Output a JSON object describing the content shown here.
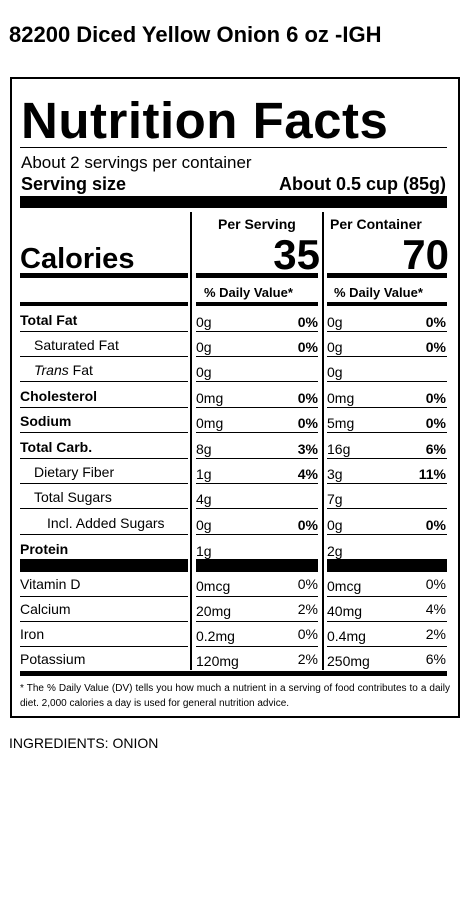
{
  "product_title": "82200 Diced Yellow Onion 6 oz -IGH",
  "label": {
    "heading": "Nutrition Facts",
    "servings_per_container": "About 2 servings per container",
    "serving_size_label": "Serving size",
    "serving_size_value": "About 0.5 cup (85g)",
    "col_per_serving": "Per Serving",
    "col_per_container": "Per Container",
    "calories_label": "Calories",
    "calories_per_serving": "35",
    "calories_per_container": "70",
    "dv_header": "% Daily Value*",
    "rows": [
      {
        "name": "Total Fat",
        "bold": true,
        "ps_amt": "0g",
        "ps_dv": "0%",
        "pc_amt": "0g",
        "pc_dv": "0%"
      },
      {
        "name": "Saturated Fat",
        "bold": false,
        "ps_amt": "0g",
        "ps_dv": "0%",
        "pc_amt": "0g",
        "pc_dv": "0%"
      },
      {
        "name_italic": "Trans",
        "name_rest": " Fat",
        "bold": false,
        "ps_amt": "0g",
        "ps_dv": "",
        "pc_amt": "0g",
        "pc_dv": ""
      },
      {
        "name": "Cholesterol",
        "bold": true,
        "ps_amt": "0mg",
        "ps_dv": "0%",
        "pc_amt": "0mg",
        "pc_dv": "0%"
      },
      {
        "name": "Sodium",
        "bold": true,
        "ps_amt": "0mg",
        "ps_dv": "0%",
        "pc_amt": "5mg",
        "pc_dv": "0%"
      },
      {
        "name": "Total Carb.",
        "bold": true,
        "ps_amt": "8g",
        "ps_dv": "3%",
        "pc_amt": "16g",
        "pc_dv": "6%"
      },
      {
        "name": "Dietary Fiber",
        "bold": false,
        "ps_amt": "1g",
        "ps_dv": "4%",
        "pc_amt": "3g",
        "pc_dv": "11%"
      },
      {
        "name": "Total Sugars",
        "bold": false,
        "ps_amt": "4g",
        "ps_dv": "",
        "pc_amt": "7g",
        "pc_dv": ""
      },
      {
        "name": "Incl. Added Sugars",
        "bold": false,
        "ps_amt": "0g",
        "ps_dv": "0%",
        "pc_amt": "0g",
        "pc_dv": "0%"
      },
      {
        "name": "Protein",
        "bold": true,
        "ps_amt": "1g",
        "ps_dv": "",
        "pc_amt": "2g",
        "pc_dv": ""
      }
    ],
    "vitamins": [
      {
        "name": "Vitamin D",
        "ps_amt": "0mcg",
        "ps_dv": "0%",
        "pc_amt": "0mcg",
        "pc_dv": "0%"
      },
      {
        "name": "Calcium",
        "ps_amt": "20mg",
        "ps_dv": "2%",
        "pc_amt": "40mg",
        "pc_dv": "4%"
      },
      {
        "name": "Iron",
        "ps_amt": "0.2mg",
        "ps_dv": "0%",
        "pc_amt": "0.4mg",
        "pc_dv": "2%"
      },
      {
        "name": "Potassium",
        "ps_amt": "120mg",
        "ps_dv": "2%",
        "pc_amt": "250mg",
        "pc_dv": "6%"
      }
    ],
    "footnote": "* The % Daily Value (DV) tells you how much a nutrient in a serving of food contributes to a daily diet. 2,000 calories a day is used for general nutrition advice."
  },
  "ingredients": "INGREDIENTS: ONION"
}
